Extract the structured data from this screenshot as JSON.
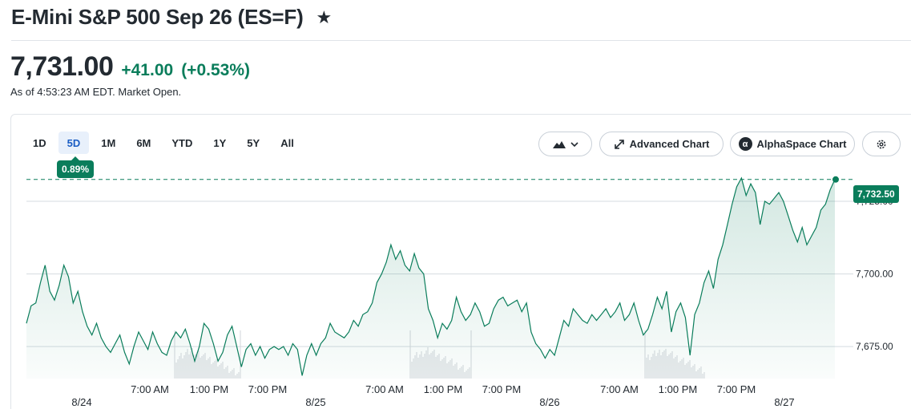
{
  "header": {
    "title": "E-Mini S&P 500 Sep 26 (ES=F)",
    "star_icon": "star-icon"
  },
  "quote": {
    "price": "7,731.00",
    "change": "+41.00",
    "change_pct": "(+0.53%)",
    "as_of": "As of 4:53:23 AM EDT. Market Open.",
    "positive_color": "#0a7d5b"
  },
  "toolbar": {
    "ranges": [
      "1D",
      "5D",
      "1M",
      "6M",
      "YTD",
      "1Y",
      "5Y",
      "All"
    ],
    "active_range": "5D",
    "range_change_tip": "0.89%",
    "chart_type_icon": "mountain-icon",
    "advanced_chart_label": "Advanced Chart",
    "alphaspace_label": "AlphaSpace Chart",
    "alphaspace_icon_glyph": "α",
    "settings_icon": "gear-icon"
  },
  "chart_data": {
    "type": "area",
    "y_ticks": [
      "7,725.00",
      "7,700.00",
      "7,675.00"
    ],
    "y_tick_values": [
      7725,
      7700,
      7675
    ],
    "last_price": "7,732.50",
    "last_value": 7732.5,
    "x_time_labels": [
      "7:00 AM",
      "1:00 PM",
      "7:00 PM",
      "7:00 AM",
      "1:00 PM",
      "7:00 PM",
      "7:00 AM",
      "1:00 PM",
      "7:00 PM"
    ],
    "x_date_labels": [
      "8/24",
      "8/25",
      "8/26",
      "8/27"
    ],
    "ylim": [
      7664,
      7733
    ],
    "price_series": [
      7683,
      7689,
      7690,
      7697,
      7703,
      7694,
      7691,
      7696,
      7703,
      7699,
      7690,
      7694,
      7687,
      7682,
      7679,
      7683,
      7678,
      7675,
      7673,
      7676,
      7679,
      7673,
      7669,
      7675,
      7680,
      7677,
      7674,
      7680,
      7676,
      7673,
      7672,
      7677,
      7680,
      7678,
      7681,
      7676,
      7670,
      7675,
      7683,
      7681,
      7676,
      7670,
      7673,
      7679,
      7682,
      7675,
      7668,
      7674,
      7676,
      7672,
      7675,
      7671,
      7674,
      7675,
      7674,
      7675,
      7672,
      7676,
      7674,
      7665,
      7672,
      7676,
      7672,
      7676,
      7678,
      7683,
      7680,
      7679,
      7678,
      7680,
      7684,
      7682,
      7686,
      7687,
      7690,
      7697,
      7700,
      7704,
      7710,
      7705,
      7708,
      7703,
      7701,
      7707,
      7702,
      7700,
      7688,
      7684,
      7678,
      7683,
      7681,
      7684,
      7692,
      7687,
      7684,
      7686,
      7690,
      7687,
      7682,
      7683,
      7688,
      7691,
      7692,
      7689,
      7690,
      7691,
      7687,
      7690,
      7680,
      7676,
      7674,
      7671,
      7674,
      7672,
      7678,
      7684,
      7682,
      7688,
      7686,
      7684,
      7683,
      7686,
      7684,
      7686,
      7688,
      7685,
      7687,
      7690,
      7684,
      7686,
      7690,
      7684,
      7679,
      7681,
      7686,
      7692,
      7688,
      7694,
      7680,
      7687,
      7690,
      7685,
      7672,
      7686,
      7690,
      7697,
      7701,
      7695,
      7705,
      7710,
      7717,
      7724,
      7730,
      7733,
      7727,
      7731,
      7728,
      7717,
      7725,
      7724,
      7726,
      7728,
      7725,
      7720,
      7715,
      7711,
      7716,
      7710,
      7713,
      7716,
      7722,
      7724,
      7729,
      7732.5
    ]
  }
}
